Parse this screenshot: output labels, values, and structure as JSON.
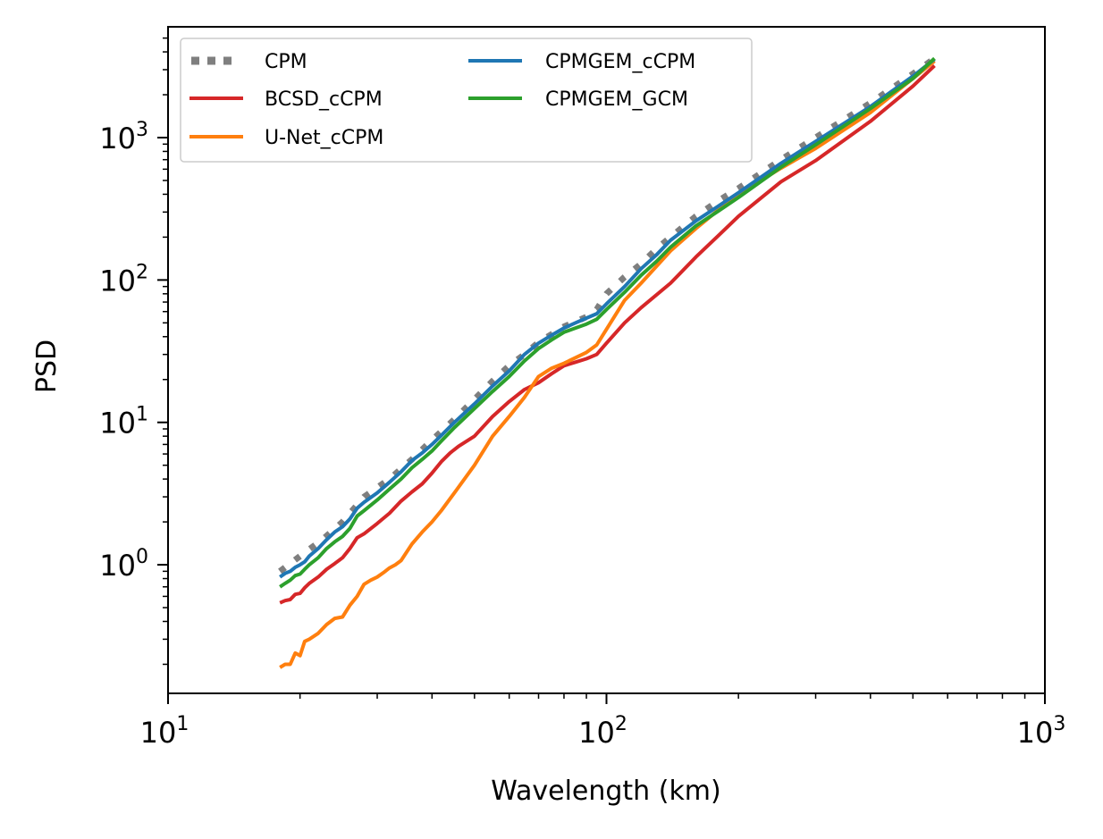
{
  "chart_data": {
    "type": "line",
    "title": "",
    "xlabel": "Wavelength (km)",
    "ylabel": "PSD",
    "xscale": "log",
    "yscale": "log",
    "xlim": [
      10,
      1000
    ],
    "ylim": [
      0.125,
      6000
    ],
    "grid": false,
    "legend_position": "top-left",
    "legend_columns": 2,
    "x_ticks": [
      {
        "value": 10,
        "base": "10",
        "exp": "1"
      },
      {
        "value": 100,
        "base": "10",
        "exp": "2"
      },
      {
        "value": 1000,
        "base": "10",
        "exp": "3"
      }
    ],
    "y_ticks": [
      {
        "value": 1,
        "base": "10",
        "exp": "0"
      },
      {
        "value": 10,
        "base": "10",
        "exp": "1"
      },
      {
        "value": 100,
        "base": "10",
        "exp": "2"
      },
      {
        "value": 1000,
        "base": "10",
        "exp": "3"
      }
    ],
    "series": [
      {
        "name": "CPM",
        "color": "#7f7f7f",
        "style": "dotted",
        "x": [
          18,
          20,
          22.5,
          25,
          28,
          32,
          36,
          40,
          45,
          50,
          55,
          60,
          65,
          70,
          80,
          90,
          95,
          100,
          110,
          120,
          130,
          140,
          160,
          180,
          200,
          250,
          300,
          400,
          500,
          560
        ],
        "y": [
          0.9,
          1.15,
          1.5,
          2.0,
          3.0,
          4.0,
          5.5,
          7.5,
          10.5,
          14.5,
          19.5,
          25.0,
          30.0,
          36.5,
          47.0,
          55.0,
          62.0,
          80.0,
          105.0,
          130.0,
          165.0,
          200.0,
          280.0,
          360.0,
          440.0,
          700.0,
          1000.0,
          1750.0,
          2800.0,
          3600.0
        ]
      },
      {
        "name": "BCSD_cCPM",
        "color": "#d62728",
        "style": "solid",
        "x": [
          18,
          18.5,
          19,
          19.5,
          20,
          20.5,
          21,
          22,
          23,
          24,
          25,
          26,
          27,
          28,
          30,
          32,
          34,
          36,
          38,
          40,
          42,
          44,
          46,
          50,
          55,
          60,
          65,
          70,
          75,
          80,
          85,
          90,
          95,
          100,
          110,
          120,
          140,
          160,
          180,
          200,
          250,
          300,
          400,
          500,
          560
        ],
        "y": [
          0.54,
          0.56,
          0.57,
          0.62,
          0.63,
          0.69,
          0.74,
          0.82,
          0.93,
          1.02,
          1.12,
          1.3,
          1.55,
          1.65,
          1.95,
          2.3,
          2.8,
          3.25,
          3.7,
          4.4,
          5.3,
          6.1,
          6.8,
          8.0,
          11.0,
          14.0,
          17.0,
          19.0,
          22.0,
          25.0,
          26.5,
          28.0,
          30.0,
          36.0,
          50.0,
          64.0,
          95.0,
          145.0,
          205.0,
          280.0,
          490.0,
          690.0,
          1300.0,
          2300.0,
          3200.0
        ]
      },
      {
        "name": "U-Net_cCPM",
        "color": "#ff7f0e",
        "style": "solid",
        "x": [
          18,
          18.5,
          19,
          19.5,
          20,
          20.5,
          21,
          22,
          23,
          24,
          25,
          26,
          27,
          28,
          29,
          30,
          31,
          32,
          33,
          34,
          36,
          38,
          40,
          42,
          45,
          50,
          55,
          60,
          65,
          70,
          75,
          80,
          90,
          95,
          100,
          110,
          120,
          140,
          160,
          180,
          200,
          250,
          300,
          400,
          500,
          560
        ],
        "y": [
          0.19,
          0.2,
          0.2,
          0.24,
          0.23,
          0.29,
          0.3,
          0.33,
          0.38,
          0.42,
          0.43,
          0.52,
          0.6,
          0.73,
          0.78,
          0.82,
          0.88,
          0.95,
          1.0,
          1.07,
          1.4,
          1.7,
          2.0,
          2.4,
          3.2,
          5.0,
          8.0,
          11.0,
          15.0,
          21.0,
          24.0,
          26.0,
          31.0,
          35.0,
          45.0,
          72.0,
          95.0,
          160.0,
          230.0,
          310.0,
          400.0,
          610.0,
          840.0,
          1500.0,
          2600.0,
          3450.0
        ]
      },
      {
        "name": "CPMGEM_cCPM",
        "color": "#1f77b4",
        "style": "solid",
        "x": [
          18,
          18.5,
          19,
          19.5,
          20,
          20.5,
          21,
          22,
          23,
          24,
          25,
          26,
          27,
          28,
          30,
          32,
          34,
          36,
          38,
          40,
          42,
          45,
          50,
          55,
          60,
          65,
          70,
          75,
          80,
          85,
          90,
          95,
          100,
          110,
          120,
          130,
          140,
          160,
          180,
          200,
          250,
          300,
          400,
          500,
          560
        ],
        "y": [
          0.82,
          0.87,
          0.9,
          0.96,
          1.0,
          1.05,
          1.15,
          1.3,
          1.5,
          1.7,
          1.85,
          2.1,
          2.5,
          2.75,
          3.2,
          3.8,
          4.5,
          5.4,
          6.1,
          7.0,
          8.1,
          10.0,
          13.5,
          18.0,
          23.0,
          30.0,
          36.0,
          41.0,
          46.0,
          50.0,
          54.0,
          58.0,
          68.0,
          90.0,
          120.0,
          150.0,
          190.0,
          260.0,
          330.0,
          410.0,
          660.0,
          940.0,
          1650.0,
          2700.0,
          3550.0
        ]
      },
      {
        "name": "CPMGEM_GCM",
        "color": "#2ca02c",
        "style": "solid",
        "x": [
          18,
          18.5,
          19,
          19.5,
          20,
          20.5,
          21,
          22,
          23,
          24,
          25,
          26,
          27,
          28,
          30,
          32,
          34,
          36,
          38,
          40,
          42,
          45,
          50,
          55,
          60,
          65,
          70,
          75,
          80,
          85,
          90,
          95,
          100,
          110,
          120,
          130,
          140,
          160,
          180,
          200,
          250,
          300,
          400,
          500,
          560
        ],
        "y": [
          0.7,
          0.74,
          0.78,
          0.84,
          0.86,
          0.93,
          1.0,
          1.12,
          1.3,
          1.45,
          1.58,
          1.8,
          2.2,
          2.4,
          2.85,
          3.4,
          4.0,
          4.8,
          5.5,
          6.3,
          7.4,
          9.2,
          12.5,
          16.5,
          21.0,
          27.0,
          33.0,
          38.0,
          43.0,
          46.0,
          49.0,
          53.0,
          62.0,
          82.0,
          108.0,
          135.0,
          170.0,
          240.0,
          305.0,
          380.0,
          620.0,
          890.0,
          1600.0,
          2600.0,
          3600.0
        ]
      }
    ]
  }
}
